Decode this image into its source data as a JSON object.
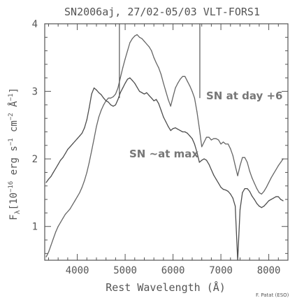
{
  "chart_data": {
    "type": "line",
    "title": "SN2006aj, 27/02-05/03 VLT-FORS1",
    "xlabel": "Rest Wavelength (Å)",
    "ylabel": "F",
    "ylabel_sub": "λ",
    "ylabel_unit": "[10",
    "ylabel_exp1": "−16",
    "ylabel_mid1": " erg s",
    "ylabel_exp2": "−1",
    "ylabel_mid2": " cm",
    "ylabel_exp3": "−2",
    "ylabel_mid3": " Å",
    "ylabel_exp4": "−1",
    "ylabel_end": "]",
    "xlim": [
      3320,
      8400
    ],
    "ylim": [
      0.5,
      4.0
    ],
    "xticks": [
      4000,
      5000,
      6000,
      7000,
      8000
    ],
    "xtick_labels": [
      "4000",
      "5000",
      "6000",
      "7000",
      "8000"
    ],
    "yticks": [
      1,
      2,
      3,
      4
    ],
    "ytick_labels": [
      "1",
      "2",
      "3",
      "4"
    ],
    "grid": false,
    "credit": "F. Patat (ESO)",
    "annotations": [
      {
        "text": "SN at day +6"
      },
      {
        "text": "SN ~at max"
      }
    ],
    "series": [
      {
        "label_ref": 1,
        "color": "#666666",
        "x": [
          3350,
          3400,
          3450,
          3500,
          3550,
          3600,
          3650,
          3700,
          3750,
          3800,
          3850,
          3900,
          3950,
          4000,
          4050,
          4100,
          4150,
          4200,
          4250,
          4300,
          4350,
          4400,
          4450,
          4500,
          4550,
          4600,
          4650,
          4700,
          4750,
          4800,
          4850,
          4900,
          4950,
          5000,
          5050,
          5100,
          5150,
          5200,
          5250,
          5300,
          5350,
          5400,
          5450,
          5500,
          5550,
          5600,
          5650,
          5700,
          5750,
          5800,
          5850,
          5900,
          5950,
          6000,
          6050,
          6100,
          6150,
          6200,
          6250,
          6300,
          6350,
          6400,
          6450,
          6500,
          6550,
          6600,
          6650,
          6700,
          6750,
          6800,
          6850,
          6900,
          6950,
          7000,
          7050,
          7100,
          7150,
          7200,
          7250,
          7300,
          7350,
          7400,
          7450,
          7500,
          7550,
          7600,
          7650,
          7700,
          7750,
          7800,
          7850,
          7900,
          7950,
          8000,
          8050,
          8100,
          8150,
          8200,
          8250,
          8300
        ],
        "y": [
          0.55,
          0.62,
          0.72,
          0.82,
          0.92,
          1.0,
          1.06,
          1.12,
          1.18,
          1.22,
          1.26,
          1.32,
          1.38,
          1.44,
          1.5,
          1.58,
          1.68,
          1.8,
          1.95,
          2.12,
          2.3,
          2.48,
          2.62,
          2.72,
          2.8,
          2.86,
          2.9,
          2.9,
          2.92,
          2.96,
          3.05,
          3.2,
          3.35,
          3.48,
          3.6,
          3.72,
          3.78,
          3.82,
          3.84,
          3.8,
          3.78,
          3.74,
          3.7,
          3.66,
          3.6,
          3.5,
          3.42,
          3.35,
          3.25,
          3.12,
          3.0,
          2.88,
          2.78,
          2.92,
          3.05,
          3.12,
          3.18,
          3.22,
          3.22,
          3.15,
          3.08,
          3.0,
          2.9,
          2.7,
          2.45,
          2.18,
          2.25,
          2.32,
          2.32,
          2.28,
          2.3,
          2.3,
          2.28,
          2.22,
          2.25,
          2.22,
          2.22,
          2.15,
          2.05,
          1.9,
          1.75,
          1.9,
          2.02,
          2.02,
          1.95,
          1.82,
          1.72,
          1.64,
          1.56,
          1.5,
          1.48,
          1.52,
          1.58,
          1.65,
          1.72,
          1.78,
          1.84,
          1.9,
          1.95,
          2.0
        ]
      },
      {
        "label_ref": 2,
        "color": "#4d4d4d",
        "x": [
          3350,
          3400,
          3450,
          3500,
          3550,
          3600,
          3650,
          3700,
          3750,
          3800,
          3850,
          3900,
          3950,
          4000,
          4050,
          4100,
          4150,
          4200,
          4250,
          4300,
          4350,
          4400,
          4450,
          4500,
          4550,
          4600,
          4650,
          4700,
          4750,
          4800,
          4850,
          4900,
          4950,
          5000,
          5050,
          5100,
          5150,
          5200,
          5250,
          5300,
          5350,
          5400,
          5450,
          5500,
          5550,
          5600,
          5650,
          5700,
          5750,
          5800,
          5850,
          5900,
          5950,
          6000,
          6050,
          6100,
          6150,
          6200,
          6250,
          6300,
          6350,
          6400,
          6450,
          6500,
          6550,
          6600,
          6650,
          6700,
          6750,
          6800,
          6850,
          6900,
          6950,
          7000,
          7050,
          7100,
          7150,
          7200,
          7250,
          7300,
          7350,
          7400,
          7450,
          7500,
          7550,
          7600,
          7650,
          7700,
          7750,
          7800,
          7850,
          7900,
          7950,
          8000,
          8050,
          8100,
          8150,
          8200,
          8250,
          8300
        ],
        "y": [
          1.65,
          1.7,
          1.74,
          1.8,
          1.86,
          1.92,
          1.98,
          2.02,
          2.08,
          2.14,
          2.18,
          2.22,
          2.26,
          2.3,
          2.34,
          2.38,
          2.46,
          2.58,
          2.76,
          2.96,
          3.05,
          3.02,
          2.98,
          2.95,
          2.9,
          2.86,
          2.84,
          2.8,
          2.78,
          2.8,
          2.88,
          2.98,
          3.05,
          3.12,
          3.18,
          3.2,
          3.16,
          3.12,
          3.06,
          3.0,
          2.98,
          2.96,
          2.98,
          2.94,
          2.9,
          2.86,
          2.88,
          2.82,
          2.72,
          2.62,
          2.55,
          2.48,
          2.42,
          2.45,
          2.46,
          2.44,
          2.42,
          2.4,
          2.4,
          2.38,
          2.34,
          2.3,
          2.22,
          2.1,
          1.95,
          1.98,
          2.0,
          1.98,
          1.92,
          1.84,
          1.76,
          1.7,
          1.64,
          1.58,
          1.55,
          1.54,
          1.52,
          1.48,
          1.42,
          1.3,
          0.5,
          1.25,
          1.5,
          1.56,
          1.56,
          1.52,
          1.45,
          1.4,
          1.34,
          1.3,
          1.28,
          1.3,
          1.34,
          1.38,
          1.4,
          1.42,
          1.44,
          1.44,
          1.4,
          1.38
        ]
      }
    ]
  }
}
